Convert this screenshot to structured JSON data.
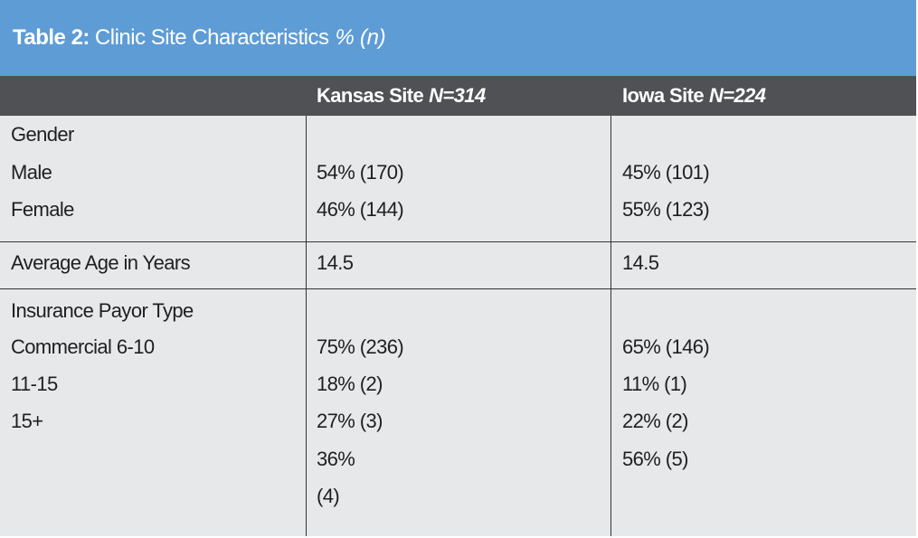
{
  "title": {
    "label": "Table 2:",
    "text": "Clinic Site Characteristics",
    "unit": "% (n)"
  },
  "header": {
    "col1": "",
    "kansas_name": "Kansas Site",
    "kansas_n": "N=314",
    "iowa_name": "Iowa Site",
    "iowa_n": "N=224"
  },
  "sections": {
    "gender": {
      "heading": "Gender",
      "male": "Male",
      "female": "Female",
      "kansas_male": "54% (170)",
      "kansas_female": "46% (144)",
      "iowa_male": "45% (101)",
      "iowa_female": "55% (123)"
    },
    "age": {
      "label": "Average Age in Years",
      "kansas": "14.5",
      "iowa": "14.5"
    },
    "insurance": {
      "heading": "Insurance Payor Type",
      "row1": "Commercial 6-10",
      "row2": "11-15",
      "row3": "15+",
      "kansas": [
        "75% (236)",
        "18% (2)",
        "27% (3)",
        "36%",
        "(4)"
      ],
      "iowa": [
        "65% (146)",
        "11% (1)",
        "22% (2)",
        "56% (5)"
      ]
    }
  },
  "colors": {
    "title_bg": "#5e9cd6",
    "header_bg": "#4f5154",
    "body_bg": "#e7e8ea"
  }
}
